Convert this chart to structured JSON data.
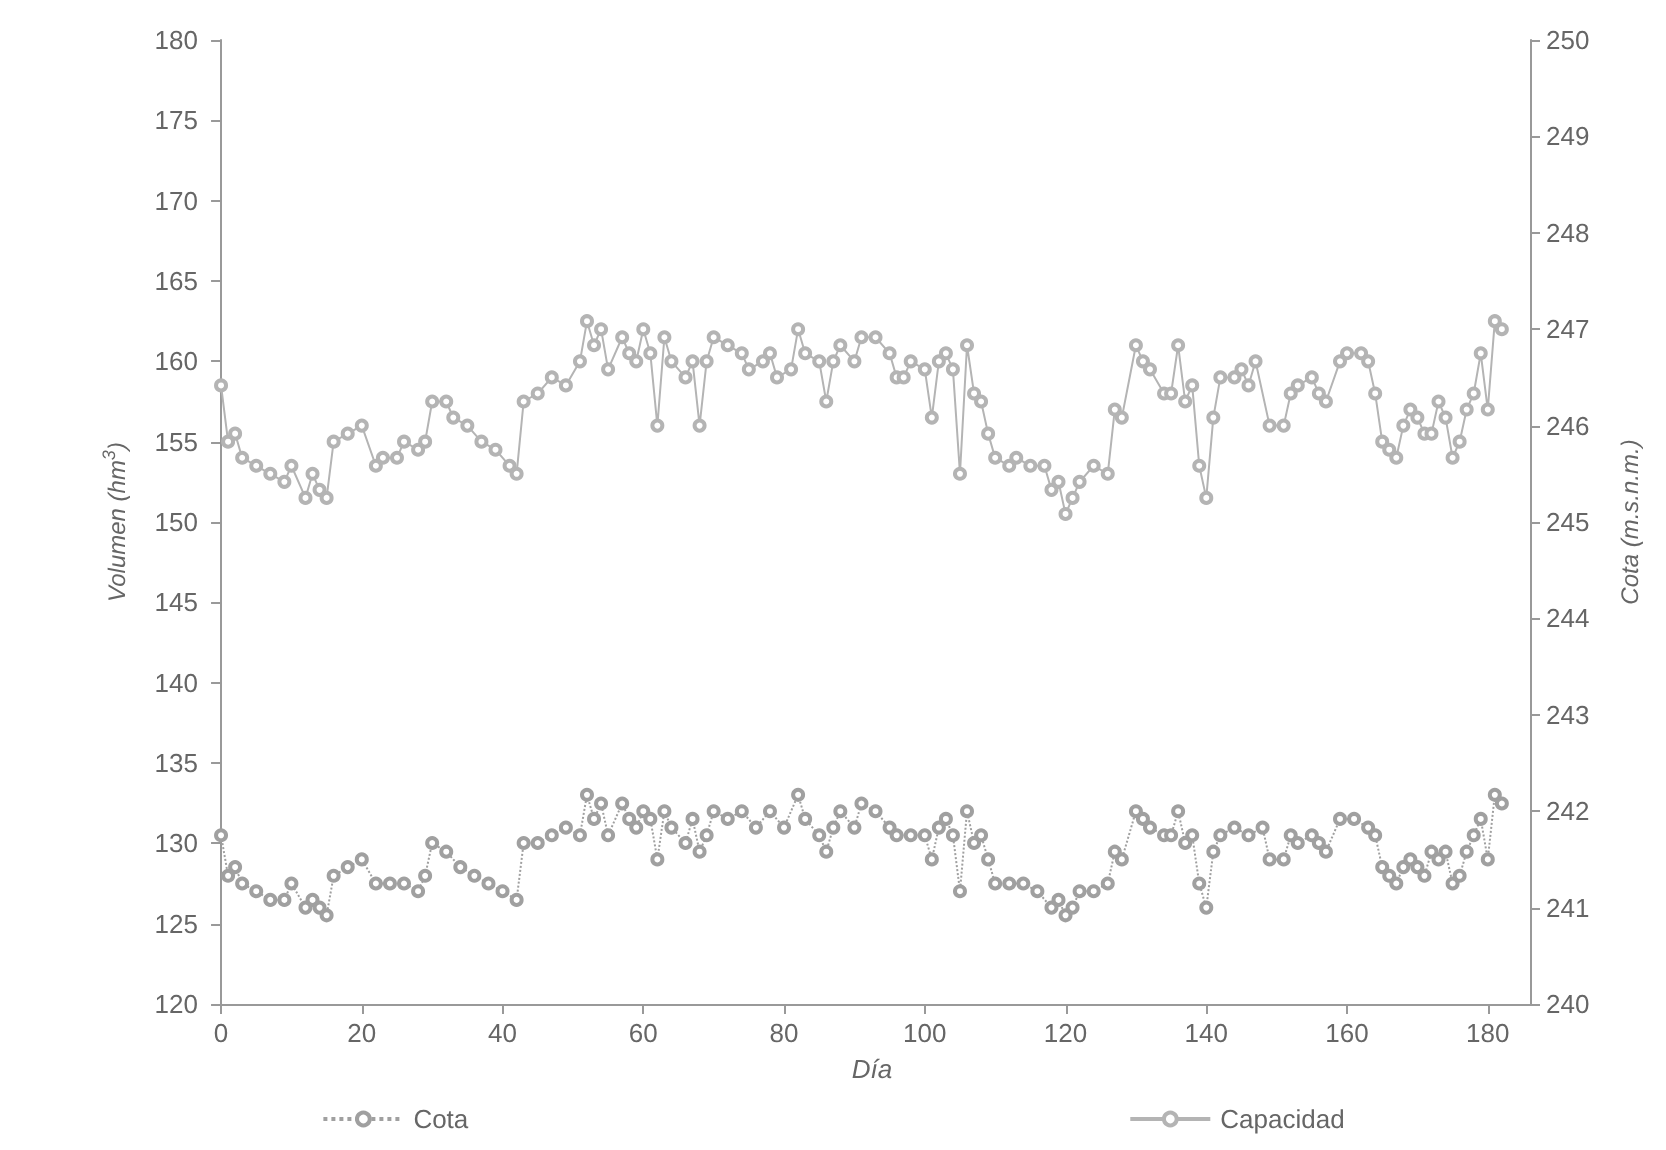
{
  "chart_data": {
    "type": "line",
    "xlabel": "Día",
    "ylabel": "Volumen (hm$^{3}$)",
    "y2label": "Cota (m.s.n.m.)",
    "xlim": [
      -1,
      186
    ],
    "xticks": [
      0,
      20,
      40,
      60,
      80,
      100,
      120,
      140,
      160,
      180
    ],
    "ylim": [
      120,
      180
    ],
    "yticks": [
      120,
      125,
      130,
      135,
      140,
      145,
      150,
      155,
      160,
      165,
      170,
      175,
      180
    ],
    "y2lim": [
      240,
      250
    ],
    "y2ticks": [
      240,
      241,
      242,
      243,
      244,
      245,
      246,
      247,
      248,
      249,
      250
    ],
    "grid": false,
    "legend": "bottom",
    "marker": "circle",
    "series": [
      {
        "name": "Cota",
        "color": "#a0a0a0",
        "axis": "y2",
        "line_style": "dotted",
        "x": [
          0,
          1,
          2,
          3,
          5,
          7,
          9,
          10,
          12,
          13,
          14,
          15,
          16,
          18,
          20,
          22,
          24,
          26,
          28,
          29,
          30,
          32,
          34,
          36,
          38,
          40,
          42,
          43,
          45,
          47,
          49,
          51,
          52,
          53,
          54,
          55,
          57,
          58,
          59,
          60,
          61,
          62,
          63,
          64,
          66,
          67,
          68,
          69,
          70,
          72,
          74,
          76,
          78,
          80,
          82,
          83,
          85,
          86,
          87,
          88,
          90,
          91,
          93,
          95,
          96,
          98,
          100,
          101,
          102,
          103,
          104,
          105,
          106,
          107,
          108,
          109,
          110,
          112,
          114,
          116,
          118,
          119,
          120,
          121,
          122,
          124,
          126,
          127,
          128,
          130,
          131,
          132,
          134,
          135,
          136,
          137,
          138,
          139,
          140,
          141,
          142,
          144,
          146,
          148,
          149,
          151,
          152,
          153,
          155,
          156,
          157,
          159,
          161,
          163,
          164,
          165,
          166,
          167,
          168,
          169,
          170,
          171,
          172,
          173,
          174,
          175,
          176,
          177,
          178,
          179,
          180,
          181,
          182
        ],
        "values": [
          241.75,
          241.33,
          241.42,
          241.25,
          241.17,
          241.08,
          241.08,
          241.25,
          241.0,
          241.08,
          241.0,
          240.92,
          241.33,
          241.42,
          241.5,
          241.25,
          241.25,
          241.25,
          241.17,
          241.33,
          241.67,
          241.58,
          241.42,
          241.33,
          241.25,
          241.17,
          241.08,
          241.67,
          241.67,
          241.75,
          241.83,
          241.75,
          242.17,
          241.92,
          242.08,
          241.75,
          242.08,
          241.92,
          241.83,
          242.0,
          241.92,
          241.5,
          242.0,
          241.83,
          241.67,
          241.92,
          241.58,
          241.75,
          242.0,
          241.92,
          242.0,
          241.83,
          242.0,
          241.83,
          242.17,
          241.92,
          241.75,
          241.58,
          241.83,
          242.0,
          241.83,
          242.08,
          242.0,
          241.83,
          241.75,
          241.75,
          241.75,
          241.5,
          241.83,
          241.92,
          241.75,
          241.17,
          242.0,
          241.67,
          241.75,
          241.5,
          241.25,
          241.25,
          241.25,
          241.17,
          241.0,
          241.08,
          240.92,
          241.0,
          241.17,
          241.17,
          241.25,
          241.58,
          241.5,
          242.0,
          241.92,
          241.83,
          241.75,
          241.75,
          242.0,
          241.67,
          241.75,
          241.25,
          241.0,
          241.58,
          241.75,
          241.83,
          241.75,
          241.83,
          241.5,
          241.5,
          241.75,
          241.67,
          241.75,
          241.67,
          241.58,
          241.92,
          241.92,
          241.83,
          241.75,
          241.42,
          241.33,
          241.25,
          241.42,
          241.5,
          241.42,
          241.33,
          241.58,
          241.5,
          241.58,
          241.25,
          241.33,
          241.58,
          241.75,
          241.92,
          241.5,
          242.17,
          242.08
        ]
      },
      {
        "name": "Capacidad",
        "color": "#b4b4b4",
        "line_style": "solid",
        "x": [
          0,
          1,
          2,
          3,
          5,
          7,
          9,
          10,
          12,
          13,
          14,
          15,
          16,
          18,
          20,
          22,
          23,
          25,
          26,
          28,
          29,
          30,
          32,
          33,
          35,
          37,
          39,
          41,
          42,
          43,
          45,
          47,
          49,
          51,
          52,
          53,
          54,
          55,
          57,
          58,
          59,
          60,
          61,
          62,
          63,
          64,
          66,
          67,
          68,
          69,
          70,
          72,
          74,
          75,
          77,
          78,
          79,
          81,
          82,
          83,
          85,
          86,
          87,
          88,
          90,
          91,
          93,
          95,
          96,
          97,
          98,
          100,
          101,
          102,
          103,
          104,
          105,
          106,
          107,
          108,
          109,
          110,
          112,
          113,
          115,
          117,
          118,
          119,
          120,
          121,
          122,
          124,
          126,
          127,
          128,
          130,
          131,
          132,
          134,
          135,
          136,
          137,
          138,
          139,
          140,
          141,
          142,
          144,
          145,
          146,
          147,
          149,
          151,
          152,
          153,
          155,
          156,
          157,
          159,
          160,
          162,
          163,
          164,
          165,
          166,
          167,
          168,
          169,
          170,
          171,
          172,
          173,
          174,
          175,
          176,
          177,
          178,
          179,
          180,
          181,
          182
        ],
        "values": [
          158.5,
          155,
          155.5,
          154,
          153.5,
          153,
          152.5,
          153.5,
          151.5,
          153,
          152,
          151.5,
          155,
          155.5,
          156,
          153.5,
          154,
          154,
          155,
          154.5,
          155,
          157.5,
          157.5,
          156.5,
          156,
          155,
          154.5,
          153.5,
          153,
          157.5,
          158,
          159,
          158.5,
          160,
          162.5,
          161,
          162,
          159.5,
          161.5,
          160.5,
          160,
          162,
          160.5,
          156,
          161.5,
          160,
          159,
          160,
          156,
          160,
          161.5,
          161,
          160.5,
          159.5,
          160,
          160.5,
          159,
          159.5,
          162,
          160.5,
          160,
          157.5,
          160,
          161,
          160,
          161.5,
          161.5,
          160.5,
          159,
          159,
          160,
          159.5,
          156.5,
          160,
          160.5,
          159.5,
          153,
          161,
          158,
          157.5,
          155.5,
          154,
          153.5,
          154,
          153.5,
          153.5,
          152,
          152.5,
          150.5,
          151.5,
          152.5,
          153.5,
          153,
          157,
          156.5,
          161,
          160,
          159.5,
          158,
          158,
          161,
          157.5,
          158.5,
          153.5,
          151.5,
          156.5,
          159,
          159,
          159.5,
          158.5,
          160,
          156,
          156,
          158,
          158.5,
          159,
          158,
          157.5,
          160,
          160.5,
          160.5,
          160,
          158,
          155,
          154.5,
          154,
          156,
          157,
          156.5,
          155.5,
          155.5,
          157.5,
          156.5,
          154,
          155,
          157,
          158,
          160.5,
          157,
          162.5,
          162
        ]
      }
    ]
  }
}
